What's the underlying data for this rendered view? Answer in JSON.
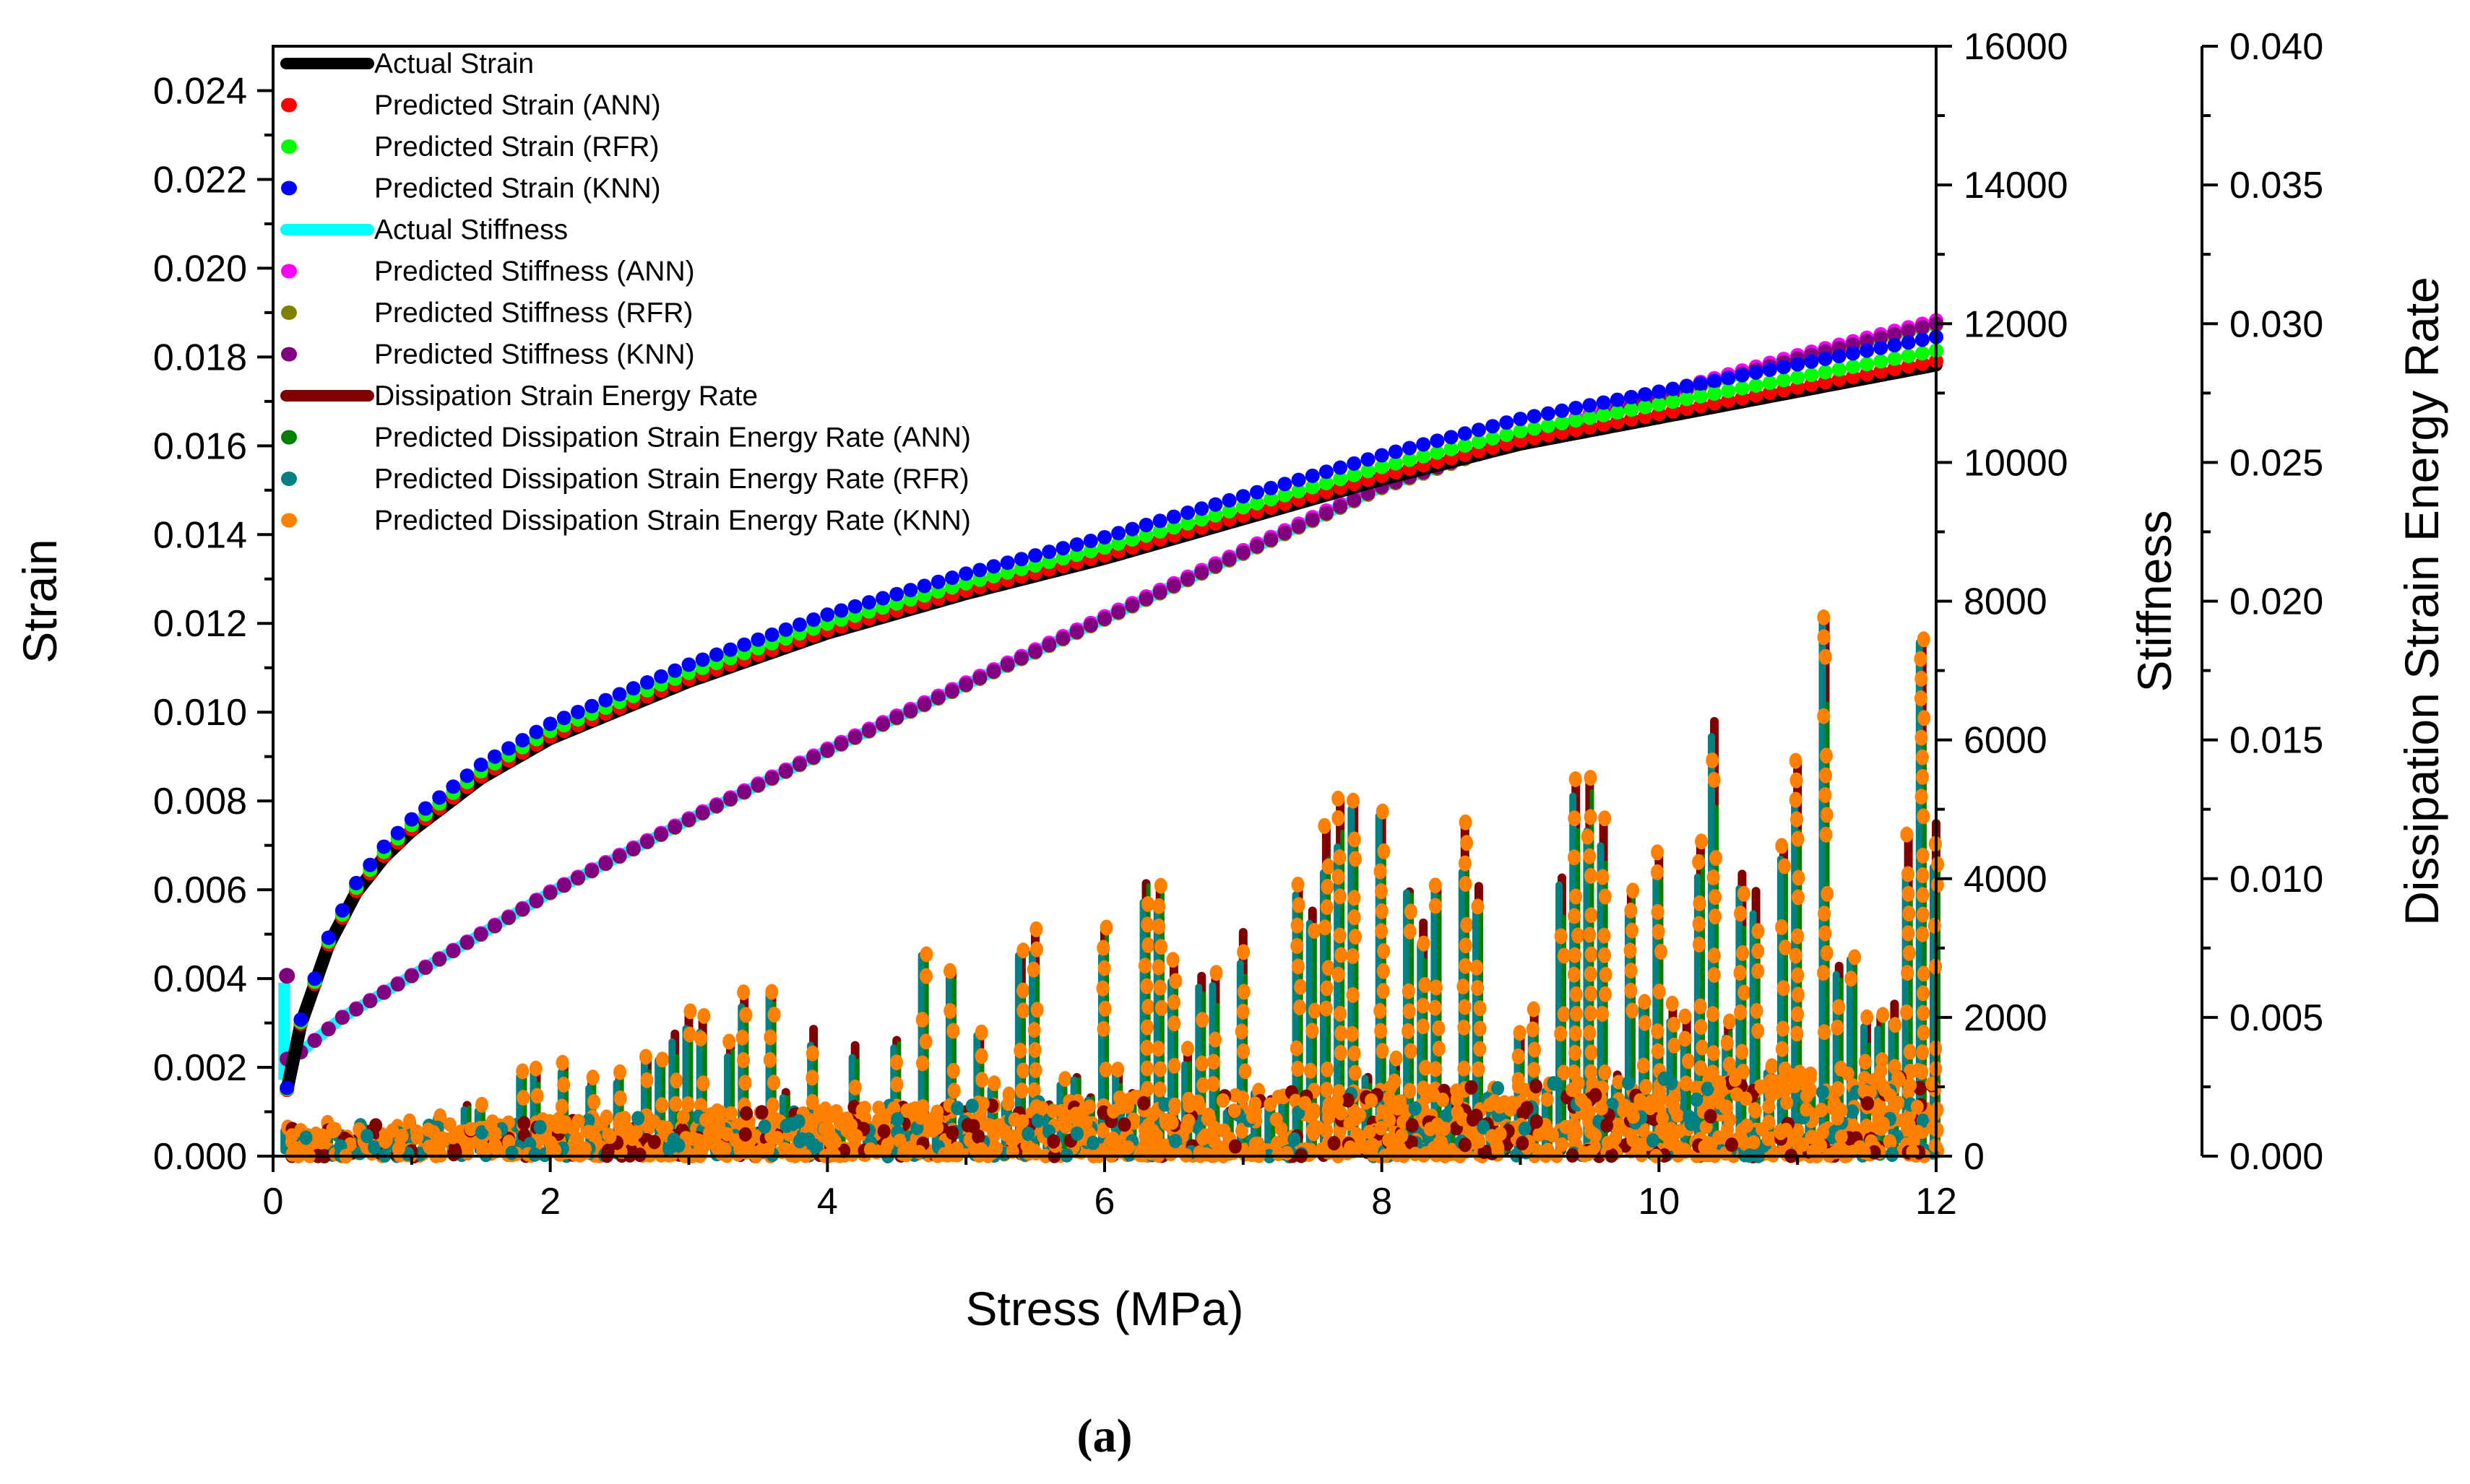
{
  "chart_data": {
    "type": "scatter",
    "xlabel": "Stress (MPa)",
    "xlim": [
      0,
      12
    ],
    "x_ticks": [
      "0",
      "2",
      "4",
      "6",
      "8",
      "10",
      "12"
    ],
    "axes": {
      "left": {
        "label": "Strain",
        "lim": [
          0,
          0.025
        ],
        "ticks": [
          "0.000",
          "0.002",
          "0.004",
          "0.006",
          "0.008",
          "0.010",
          "0.012",
          "0.014",
          "0.016",
          "0.018",
          "0.020",
          "0.022",
          "0.024"
        ]
      },
      "right1": {
        "label": "Stiffness",
        "lim": [
          0,
          16000
        ],
        "ticks": [
          "0",
          "2000",
          "4000",
          "6000",
          "8000",
          "10000",
          "12000",
          "14000",
          "16000"
        ]
      },
      "right2": {
        "label": "Dissipation Strain Energy Rate",
        "lim": [
          0,
          0.04
        ],
        "ticks": [
          "0.000",
          "0.005",
          "0.010",
          "0.015",
          "0.020",
          "0.025",
          "0.030",
          "0.035",
          "0.040"
        ]
      }
    },
    "series": [
      {
        "name": "Actual Strain",
        "color": "#000000",
        "marker": "line",
        "axis": "left"
      },
      {
        "name": "Predicted Strain (ANN)",
        "color": "#ff0000",
        "marker": "dot",
        "axis": "left"
      },
      {
        "name": "Predicted Strain (RFR)",
        "color": "#00ff00",
        "marker": "dot",
        "axis": "left"
      },
      {
        "name": "Predicted Strain (KNN)",
        "color": "#0000ff",
        "marker": "dot",
        "axis": "left"
      },
      {
        "name": "Actual Stiffness",
        "color": "#00ffff",
        "marker": "line",
        "axis": "right1"
      },
      {
        "name": "Predicted Stiffness (ANN)",
        "color": "#ff00ff",
        "marker": "dot",
        "axis": "right1"
      },
      {
        "name": "Predicted Stiffness (RFR)",
        "color": "#808000",
        "marker": "dot",
        "axis": "right1"
      },
      {
        "name": "Predicted Stiffness (KNN)",
        "color": "#800080",
        "marker": "dot",
        "axis": "right1"
      },
      {
        "name": "Dissipation Strain Energy Rate",
        "color": "#800000",
        "marker": "line",
        "axis": "right2"
      },
      {
        "name": "Predicted Dissipation Strain Energy Rate (ANN)",
        "color": "#008000",
        "marker": "dot",
        "axis": "right2"
      },
      {
        "name": "Predicted Dissipation Strain Energy Rate (RFR)",
        "color": "#008080",
        "marker": "dot",
        "axis": "right2"
      },
      {
        "name": "Predicted Dissipation Strain Energy Rate (KNN)",
        "color": "#ff8000",
        "marker": "dot",
        "axis": "right2"
      }
    ],
    "strain_curve": {
      "x": [
        0.1,
        0.2,
        0.4,
        0.6,
        0.8,
        1.0,
        1.5,
        2.0,
        3.0,
        4.0,
        5.0,
        6.0,
        7.0,
        8.0,
        9.0,
        10.0,
        11.0,
        12.0
      ],
      "y": [
        0.0015,
        0.003,
        0.0048,
        0.006,
        0.0068,
        0.0074,
        0.0086,
        0.0095,
        0.0108,
        0.0119,
        0.0128,
        0.0136,
        0.0145,
        0.0154,
        0.0162,
        0.0168,
        0.0174,
        0.018
      ]
    },
    "stiffness_curve": {
      "x": [
        0.1,
        0.2,
        0.5,
        1.0,
        2.0,
        3.0,
        4.0,
        5.0,
        6.0,
        7.0,
        8.0,
        9.0,
        10.0,
        11.0,
        12.0
      ],
      "y": [
        1400,
        1500,
        2000,
        2600,
        3800,
        4850,
        5850,
        6800,
        7750,
        8700,
        9650,
        10350,
        10950,
        11500,
        12000
      ]
    },
    "dissipation_peaks": {
      "x": [
        1.0,
        2.0,
        3.0,
        4.0,
        5.0,
        6.0,
        7.0,
        7.4,
        8.0,
        8.3,
        9.0,
        9.5,
        10.0,
        10.5,
        11.0,
        11.35,
        12.0
      ],
      "y": [
        0.0013,
        0.0035,
        0.0055,
        0.007,
        0.0078,
        0.0105,
        0.012,
        0.013,
        0.0135,
        0.0143,
        0.0147,
        0.0155,
        0.0163,
        0.0165,
        0.0185,
        0.0212,
        0.02
      ]
    },
    "caption": "(a)"
  }
}
